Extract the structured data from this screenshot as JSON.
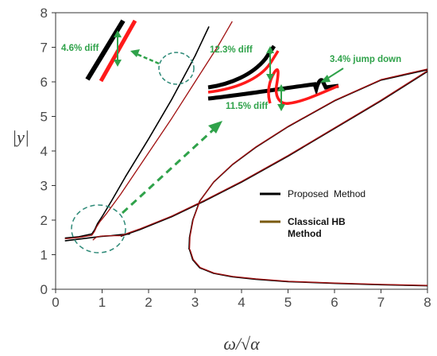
{
  "chart_data": {
    "type": "line",
    "title": "",
    "xlabel": "ω/√α",
    "ylabel": "|y|",
    "xlim": [
      0,
      8
    ],
    "ylim": [
      0,
      8
    ],
    "x_ticks": [
      "0",
      "1",
      "2",
      "3",
      "4",
      "5",
      "6",
      "7",
      "8"
    ],
    "y_ticks": [
      "0",
      "1",
      "2",
      "3",
      "4",
      "5",
      "6",
      "7",
      "8"
    ],
    "grid": false,
    "legend": {
      "placement": "center-right",
      "entries": [
        {
          "label": "Proposed  Method",
          "color": "#000000"
        },
        {
          "label": "Classical HB Method",
          "color": "#a01010"
        }
      ]
    },
    "series": [
      {
        "name": "Proposed  Method",
        "color": "#000000",
        "curves": [
          {
            "x": [
              0.2,
              0.5,
              0.78,
              0.84,
              0.9,
              1.0,
              1.2,
              1.5,
              2.0,
              2.5,
              3.0,
              3.3
            ],
            "y": [
              1.48,
              1.52,
              1.6,
              1.72,
              1.9,
              2.1,
              2.55,
              3.25,
              4.35,
              5.5,
              6.75,
              7.6
            ]
          },
          {
            "x": [
              0.2,
              0.5,
              0.8,
              1.0,
              1.2,
              1.4,
              1.6
            ],
            "y": [
              1.4,
              1.45,
              1.5,
              1.53,
              1.55,
              1.58,
              1.6
            ]
          },
          {
            "x": [
              1.4,
              1.8,
              2.5,
              3.2,
              4.0,
              5.0,
              6.0,
              7.0,
              8.0
            ],
            "y": [
              1.53,
              1.72,
              2.1,
              2.55,
              3.1,
              3.85,
              4.65,
              5.45,
              6.3
            ]
          },
          {
            "x": [
              2.87,
              2.88,
              2.95,
              3.1,
              3.4,
              3.8,
              4.3,
              5.0,
              6.0,
              7.0,
              8.0
            ],
            "y": [
              1.15,
              1.5,
              2.0,
              2.55,
              3.1,
              3.6,
              4.1,
              4.7,
              5.45,
              6.05,
              6.35
            ]
          },
          {
            "x": [
              2.88,
              2.95,
              3.1,
              3.4,
              3.8,
              4.3,
              5.0,
              6.0,
              7.0,
              8.0
            ],
            "y": [
              1.15,
              0.85,
              0.62,
              0.46,
              0.36,
              0.29,
              0.22,
              0.17,
              0.13,
              0.1
            ]
          }
        ]
      },
      {
        "name": "Classical HB Method",
        "color": "#a01010",
        "curves": [
          {
            "x": [
              0.2,
              0.5,
              0.78,
              0.84,
              0.88,
              0.95,
              1.1,
              1.4,
              2.0,
              2.5,
              3.0,
              3.5,
              3.8
            ],
            "y": [
              1.46,
              1.5,
              1.56,
              1.68,
              1.8,
              1.95,
              2.2,
              2.75,
              3.95,
              4.95,
              6.0,
              7.05,
              7.75
            ]
          },
          {
            "x": [
              0.8,
              0.85,
              0.9,
              1.0,
              1.2,
              1.4
            ],
            "y": [
              1.42,
              1.48,
              1.52,
              1.54,
              1.55,
              1.55
            ]
          },
          {
            "x": [
              1.4,
              1.8,
              2.5,
              3.2,
              4.0,
              5.0,
              6.0,
              7.0,
              8.0
            ],
            "y": [
              1.55,
              1.74,
              2.12,
              2.57,
              3.12,
              3.87,
              4.67,
              5.47,
              6.32
            ]
          },
          {
            "x": [
              2.88,
              2.89,
              2.96,
              3.11,
              3.41,
              3.81,
              4.31,
              5.01,
              6.01,
              7.01,
              8.0
            ],
            "y": [
              1.15,
              1.52,
              2.02,
              2.57,
              3.12,
              3.62,
              4.12,
              4.72,
              5.47,
              6.07,
              6.37
            ]
          },
          {
            "x": [
              2.89,
              2.96,
              3.11,
              3.41,
              3.81,
              4.31,
              5.01,
              6.01,
              7.01,
              8.0
            ],
            "y": [
              1.15,
              0.86,
              0.63,
              0.47,
              0.37,
              0.3,
              0.23,
              0.18,
              0.14,
              0.11
            ]
          }
        ]
      }
    ],
    "annotations": [
      {
        "text": "4.6% diff"
      },
      {
        "text": "12.3% diff"
      },
      {
        "text": "3.4% jump down"
      },
      {
        "text": "11.5% diff"
      }
    ]
  },
  "colors": {
    "proposed": "#000000",
    "classical": "#a01010",
    "classical_legend": "#7a5a10",
    "annotation": "#2fa24a",
    "zoom_circle": "#2e8a78",
    "axis": "#333333",
    "inset_black": "#000000",
    "inset_red": "#ff1a1a"
  }
}
